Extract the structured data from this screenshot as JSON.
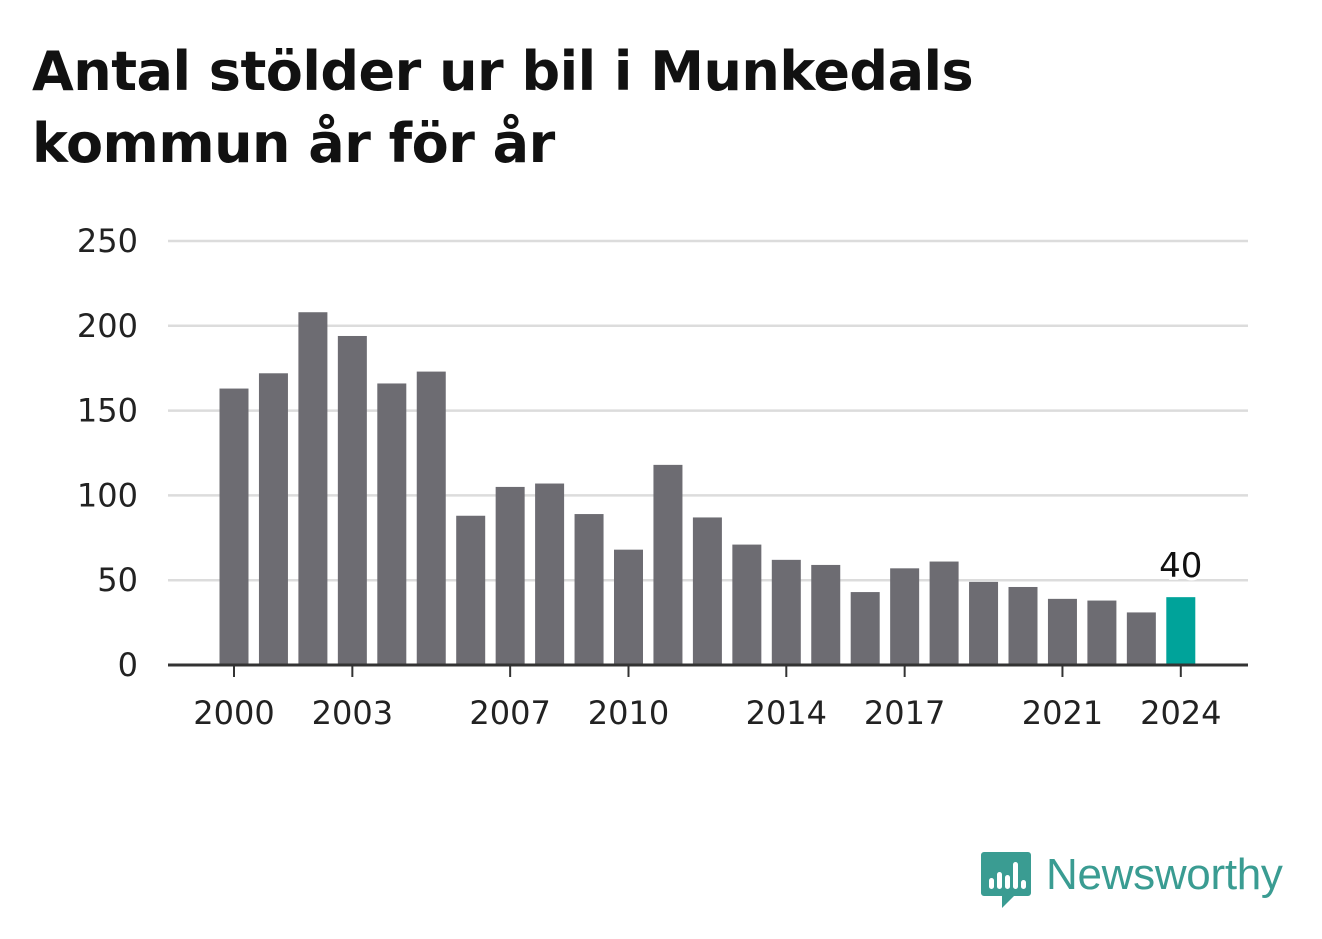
{
  "title": "Antal stölder ur bil i Munkedals kommun år för år",
  "colors": {
    "bar": "#6d6c72",
    "highlight": "#00a39a",
    "grid": "#dcdcdc",
    "axis": "#333333",
    "text": "#222222",
    "brand": "#3a9c92"
  },
  "chart_data": {
    "type": "bar",
    "title": "Antal stölder ur bil i Munkedals kommun år för år",
    "xlabel": "",
    "ylabel": "",
    "categories": [
      "2000",
      "2001",
      "2002",
      "2003",
      "2004",
      "2005",
      "2006",
      "2007",
      "2008",
      "2009",
      "2010",
      "2011",
      "2012",
      "2013",
      "2014",
      "2015",
      "2016",
      "2017",
      "2018",
      "2019",
      "2020",
      "2021",
      "2022",
      "2023",
      "2024"
    ],
    "values": [
      163,
      172,
      208,
      194,
      166,
      173,
      88,
      105,
      107,
      89,
      68,
      118,
      87,
      71,
      62,
      59,
      43,
      57,
      61,
      49,
      46,
      39,
      38,
      31,
      40
    ],
    "ylim": [
      0,
      250
    ],
    "yticks": [
      0,
      50,
      100,
      150,
      200,
      250
    ],
    "xticks": [
      "2000",
      "2003",
      "2007",
      "2010",
      "2014",
      "2017",
      "2021",
      "2024"
    ],
    "highlight": {
      "category": "2024",
      "label": "40"
    },
    "grid": true,
    "legend": "none"
  },
  "brand": {
    "name": "Newsworthy",
    "icon": "bar-chart-speech-bubble-icon"
  }
}
